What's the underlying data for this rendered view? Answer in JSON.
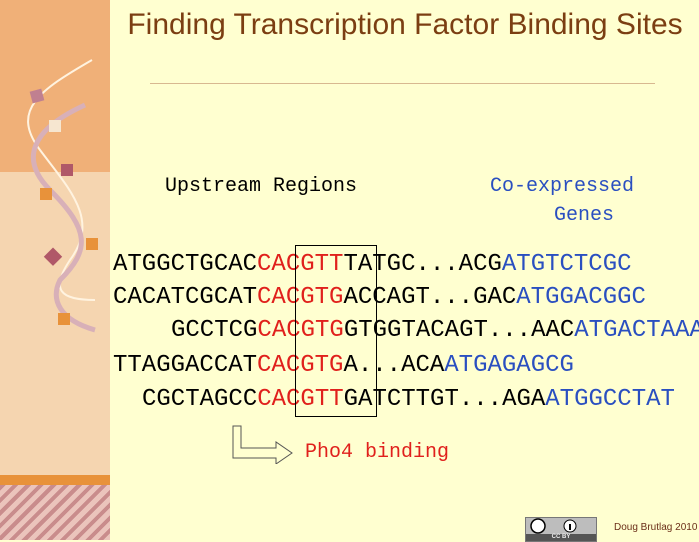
{
  "title": "Finding Transcription Factor Binding Sites",
  "headers": {
    "upstream": "Upstream Regions",
    "coexpressed_line1": "Co-expressed",
    "coexpressed_line2": "Genes"
  },
  "sequences": [
    {
      "prefix": "ATGGCTGCAC",
      "motif": "CACGTT",
      "middle": "TATGC...ACG",
      "gene": "ATGTCTCGC"
    },
    {
      "prefix": "CACATCGCAT",
      "motif": "CACGTG",
      "middle": "ACCAGT...GAC",
      "gene": "ATGGACGGC"
    },
    {
      "prefix": "GCCTCG",
      "motif": "CACGTG",
      "middle": "GTGGTACAGT...AAC",
      "gene": "ATGACTAAA"
    },
    {
      "prefix": "TTAGGACCAT",
      "motif": "CACGTG",
      "middle": "A...ACA",
      "gene": "ATGAGAGCG"
    },
    {
      "prefix": "CGCTAGCC",
      "motif": "CACGTT",
      "middle": "GATCTTGT...AGA",
      "gene": "ATGGCCTAT"
    }
  ],
  "binding_label": "Pho4 binding",
  "credit": "Doug Brutlag 2010",
  "license_badge": "CC BY",
  "colors": {
    "motif": "#e0201c",
    "gene": "#2a4fc0",
    "title": "#7b3e12"
  }
}
